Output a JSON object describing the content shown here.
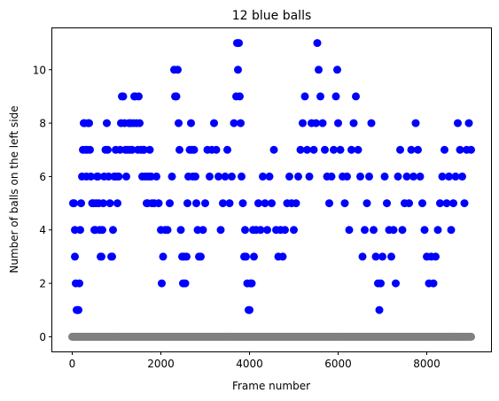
{
  "chart_data": {
    "type": "scatter",
    "title": "12 blue balls",
    "xlabel": "Frame number",
    "ylabel": "Number of balls on the left side",
    "xlim": [
      -450,
      9450
    ],
    "ylim": [
      -0.55,
      11.55
    ],
    "xticks": [
      0,
      2000,
      4000,
      6000,
      8000
    ],
    "yticks": [
      0,
      2,
      4,
      6,
      8,
      10
    ],
    "grid": false,
    "legend": "none",
    "series": [
      {
        "color": "#0000ff",
        "marker": "circle",
        "points": [
          [
            20,
            5
          ],
          [
            40,
            5
          ],
          [
            60,
            4
          ],
          [
            60,
            3
          ],
          [
            80,
            2
          ],
          [
            100,
            1
          ],
          [
            120,
            1
          ],
          [
            140,
            1
          ],
          [
            160,
            2
          ],
          [
            180,
            4
          ],
          [
            200,
            5
          ],
          [
            220,
            6
          ],
          [
            240,
            7
          ],
          [
            260,
            8
          ],
          [
            280,
            8
          ],
          [
            300,
            7
          ],
          [
            320,
            6
          ],
          [
            340,
            7
          ],
          [
            360,
            8
          ],
          [
            380,
            8
          ],
          [
            400,
            7
          ],
          [
            420,
            6
          ],
          [
            450,
            5
          ],
          [
            480,
            5
          ],
          [
            500,
            4
          ],
          [
            520,
            4
          ],
          [
            540,
            5
          ],
          [
            560,
            6
          ],
          [
            580,
            6
          ],
          [
            600,
            5
          ],
          [
            620,
            4
          ],
          [
            640,
            3
          ],
          [
            660,
            3
          ],
          [
            680,
            4
          ],
          [
            700,
            5
          ],
          [
            720,
            6
          ],
          [
            750,
            7
          ],
          [
            780,
            8
          ],
          [
            800,
            7
          ],
          [
            820,
            6
          ],
          [
            850,
            5
          ],
          [
            880,
            3
          ],
          [
            900,
            3
          ],
          [
            920,
            4
          ],
          [
            950,
            6
          ],
          [
            980,
            7
          ],
          [
            1000,
            6
          ],
          [
            1020,
            5
          ],
          [
            1050,
            6
          ],
          [
            1080,
            7
          ],
          [
            1100,
            8
          ],
          [
            1120,
            9
          ],
          [
            1150,
            9
          ],
          [
            1180,
            8
          ],
          [
            1200,
            7
          ],
          [
            1220,
            6
          ],
          [
            1250,
            7
          ],
          [
            1280,
            8
          ],
          [
            1300,
            7
          ],
          [
            1320,
            8
          ],
          [
            1350,
            7
          ],
          [
            1380,
            8
          ],
          [
            1400,
            9
          ],
          [
            1420,
            9
          ],
          [
            1450,
            8
          ],
          [
            1480,
            7
          ],
          [
            1500,
            9
          ],
          [
            1520,
            8
          ],
          [
            1550,
            7
          ],
          [
            1580,
            6
          ],
          [
            1600,
            7
          ],
          [
            1620,
            7
          ],
          [
            1650,
            6
          ],
          [
            1680,
            5
          ],
          [
            1700,
            5
          ],
          [
            1720,
            6
          ],
          [
            1750,
            7
          ],
          [
            1780,
            6
          ],
          [
            1800,
            5
          ],
          [
            1850,
            5
          ],
          [
            1900,
            6
          ],
          [
            1950,
            5
          ],
          [
            2000,
            4
          ],
          [
            2020,
            2
          ],
          [
            2050,
            3
          ],
          [
            2100,
            4
          ],
          [
            2150,
            4
          ],
          [
            2200,
            5
          ],
          [
            2250,
            6
          ],
          [
            2300,
            10
          ],
          [
            2320,
            9
          ],
          [
            2350,
            9
          ],
          [
            2380,
            10
          ],
          [
            2400,
            8
          ],
          [
            2420,
            7
          ],
          [
            2450,
            4
          ],
          [
            2480,
            3
          ],
          [
            2500,
            2
          ],
          [
            2520,
            3
          ],
          [
            2550,
            2
          ],
          [
            2580,
            3
          ],
          [
            2600,
            5
          ],
          [
            2620,
            6
          ],
          [
            2650,
            7
          ],
          [
            2680,
            8
          ],
          [
            2700,
            7
          ],
          [
            2720,
            6
          ],
          [
            2750,
            7
          ],
          [
            2780,
            6
          ],
          [
            2800,
            5
          ],
          [
            2830,
            4
          ],
          [
            2860,
            3
          ],
          [
            2900,
            3
          ],
          [
            2950,
            4
          ],
          [
            3000,
            5
          ],
          [
            3050,
            7
          ],
          [
            3100,
            6
          ],
          [
            3150,
            7
          ],
          [
            3200,
            8
          ],
          [
            3250,
            7
          ],
          [
            3300,
            6
          ],
          [
            3350,
            4
          ],
          [
            3400,
            5
          ],
          [
            3450,
            6
          ],
          [
            3500,
            7
          ],
          [
            3550,
            5
          ],
          [
            3600,
            6
          ],
          [
            3650,
            8
          ],
          [
            3700,
            9
          ],
          [
            3720,
            11
          ],
          [
            3740,
            10
          ],
          [
            3760,
            11
          ],
          [
            3780,
            9
          ],
          [
            3800,
            8
          ],
          [
            3820,
            6
          ],
          [
            3850,
            5
          ],
          [
            3880,
            3
          ],
          [
            3900,
            4
          ],
          [
            3920,
            3
          ],
          [
            3950,
            2
          ],
          [
            3980,
            1
          ],
          [
            4000,
            1
          ],
          [
            4020,
            2
          ],
          [
            4050,
            2
          ],
          [
            4080,
            4
          ],
          [
            4100,
            3
          ],
          [
            4150,
            4
          ],
          [
            4200,
            5
          ],
          [
            4250,
            4
          ],
          [
            4300,
            6
          ],
          [
            4350,
            5
          ],
          [
            4400,
            4
          ],
          [
            4450,
            6
          ],
          [
            4500,
            5
          ],
          [
            4550,
            7
          ],
          [
            4600,
            4
          ],
          [
            4650,
            3
          ],
          [
            4700,
            4
          ],
          [
            4750,
            3
          ],
          [
            4800,
            4
          ],
          [
            4850,
            5
          ],
          [
            4900,
            6
          ],
          [
            4950,
            5
          ],
          [
            5000,
            4
          ],
          [
            5050,
            5
          ],
          [
            5100,
            6
          ],
          [
            5150,
            7
          ],
          [
            5200,
            8
          ],
          [
            5250,
            9
          ],
          [
            5300,
            7
          ],
          [
            5350,
            6
          ],
          [
            5400,
            8
          ],
          [
            5450,
            7
          ],
          [
            5500,
            8
          ],
          [
            5530,
            11
          ],
          [
            5560,
            10
          ],
          [
            5600,
            9
          ],
          [
            5650,
            8
          ],
          [
            5700,
            7
          ],
          [
            5750,
            6
          ],
          [
            5800,
            5
          ],
          [
            5850,
            6
          ],
          [
            5900,
            7
          ],
          [
            5950,
            9
          ],
          [
            5980,
            10
          ],
          [
            6000,
            8
          ],
          [
            6050,
            7
          ],
          [
            6100,
            6
          ],
          [
            6150,
            5
          ],
          [
            6200,
            6
          ],
          [
            6250,
            4
          ],
          [
            6300,
            7
          ],
          [
            6350,
            8
          ],
          [
            6400,
            9
          ],
          [
            6450,
            7
          ],
          [
            6500,
            6
          ],
          [
            6550,
            3
          ],
          [
            6600,
            4
          ],
          [
            6650,
            5
          ],
          [
            6700,
            6
          ],
          [
            6750,
            8
          ],
          [
            6800,
            4
          ],
          [
            6850,
            3
          ],
          [
            6900,
            2
          ],
          [
            6930,
            1
          ],
          [
            6960,
            2
          ],
          [
            7000,
            3
          ],
          [
            7050,
            6
          ],
          [
            7100,
            5
          ],
          [
            7150,
            4
          ],
          [
            7200,
            3
          ],
          [
            7250,
            4
          ],
          [
            7300,
            2
          ],
          [
            7350,
            6
          ],
          [
            7400,
            7
          ],
          [
            7450,
            4
          ],
          [
            7500,
            5
          ],
          [
            7550,
            6
          ],
          [
            7600,
            5
          ],
          [
            7650,
            7
          ],
          [
            7700,
            6
          ],
          [
            7750,
            8
          ],
          [
            7800,
            7
          ],
          [
            7850,
            6
          ],
          [
            7900,
            5
          ],
          [
            7950,
            4
          ],
          [
            8000,
            3
          ],
          [
            8050,
            2
          ],
          [
            8100,
            3
          ],
          [
            8150,
            2
          ],
          [
            8200,
            3
          ],
          [
            8250,
            4
          ],
          [
            8300,
            5
          ],
          [
            8350,
            6
          ],
          [
            8400,
            7
          ],
          [
            8450,
            5
          ],
          [
            8500,
            6
          ],
          [
            8550,
            4
          ],
          [
            8600,
            5
          ],
          [
            8650,
            6
          ],
          [
            8700,
            8
          ],
          [
            8750,
            7
          ],
          [
            8800,
            6
          ],
          [
            8850,
            5
          ],
          [
            8900,
            7
          ],
          [
            8950,
            8
          ],
          [
            9000,
            7
          ]
        ]
      },
      {
        "color": "#808080",
        "marker": "circle",
        "x_range": [
          0,
          9000
        ],
        "y": 0
      }
    ]
  }
}
